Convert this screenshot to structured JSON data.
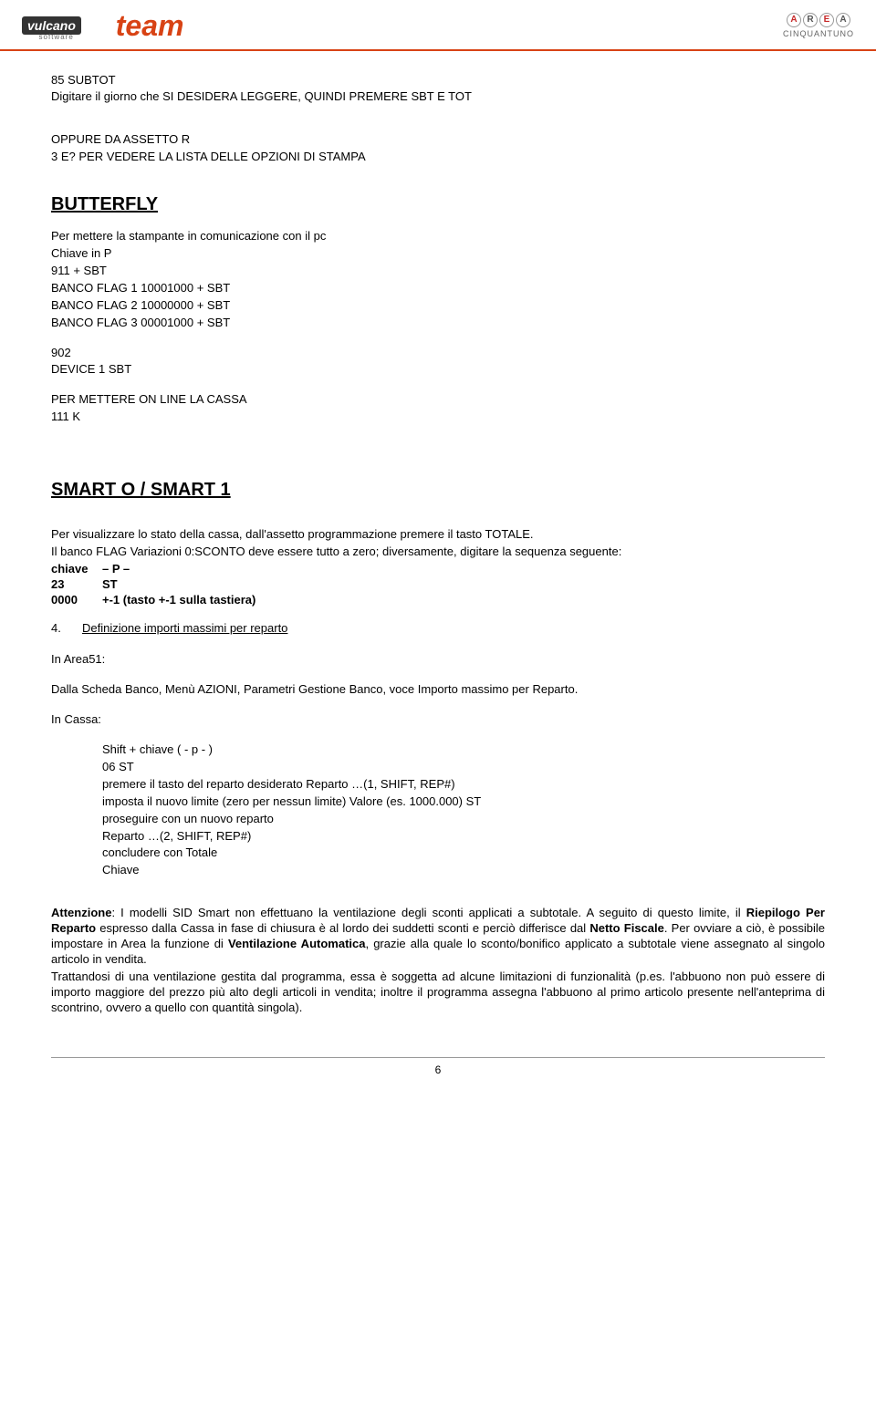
{
  "header": {
    "logo_left_main": "vulcano",
    "logo_left_sub": "software",
    "logo_left_team": "team",
    "logo_right_letters": [
      "A",
      "R",
      "E",
      "A"
    ],
    "logo_right_sub": "CINQUANTUNO"
  },
  "body": {
    "l1": "85 SUBTOT",
    "l2": "Digitare il giorno che SI DESIDERA LEGGERE, QUINDI PREMERE SBT E TOT",
    "l3": "OPPURE DA ASSETTO R",
    "l4": "3 E? PER VEDERE LA LISTA DELLE OPZIONI DI STAMPA",
    "h1": "BUTTERFLY",
    "l5": "Per mettere la stampante in comunicazione con il pc",
    "l6": "Chiave in P",
    "l7": "911 + SBT",
    "l8": "BANCO FLAG 1 10001000 + SBT",
    "l9": "BANCO FLAG 2 10000000 + SBT",
    "l10": "BANCO FLAG 3 00001000 + SBT",
    "l11": "902",
    "l12": "DEVICE 1 SBT",
    "l13": "PER METTERE ON LINE LA CASSA",
    "l14": "111 K",
    "h2": "SMART O / SMART 1",
    "l15": "Per visualizzare lo stato della cassa, dall'assetto programmazione premere il tasto TOTALE.",
    "l16": "Il banco FLAG Variazioni 0:SCONTO deve essere tutto a zero; diversamente, digitare la sequenza seguente:",
    "row1_k": "chiave",
    "row1_v": "– P –",
    "row2_k": "23",
    "row2_v": "ST",
    "row3_k": "0000",
    "row3_v": "+-1 (tasto +-1 sulla tastiera)",
    "list4_n": "4.",
    "list4_t": "Definizione importi massimi per reparto",
    "l17": "In Area51:",
    "l18": "Dalla Scheda Banco, Menù AZIONI, Parametri Gestione Banco, voce Importo massimo per Reparto.",
    "l19": "In Cassa:",
    "c1": "Shift + chiave ( - p - )",
    "c2": "06 ST",
    "c3": "premere il tasto del reparto desiderato        Reparto …(1, SHIFT, REP#)",
    "c4": "imposta il nuovo limite (zero per nessun limite)        Valore (es. 1000.000)  ST",
    "c5": "proseguire con un nuovo reparto",
    "c6": "Reparto …(2, SHIFT, REP#)",
    "c7": "concludere con    Totale",
    "c8": "Chiave",
    "att_label": "Attenzione",
    "att_1a": ": I modelli SID Smart non effettuano la ventilazione degli sconti applicati a subtotale. A seguito di questo limite, il ",
    "att_1b": "Riepilogo Per Reparto",
    "att_1c": " espresso dalla Cassa in fase di chiusura è al lordo dei suddetti sconti e perciò differisce dal ",
    "att_1d": "Netto Fiscale",
    "att_1e": ". Per ovviare a ciò, è possibile impostare in Area la funzione di ",
    "att_1f": "Ventilazione Automatica",
    "att_1g": ", grazie alla quale lo sconto/bonifico applicato a subtotale viene assegnato al singolo articolo in vendita.",
    "att_2": "Trattandosi di una ventilazione gestita dal programma, essa è soggetta ad alcune limitazioni di funzionalità (p.es. l'abbuono non può essere di importo maggiore del prezzo più alto degli articoli in vendita; inoltre il programma assegna l'abbuono al primo articolo presente nell'anteprima di scontrino, ovvero a quello con quantità singola)."
  },
  "footer": {
    "page": "6"
  },
  "colors": {
    "accent": "#d84315",
    "text": "#000000",
    "bg": "#ffffff"
  }
}
